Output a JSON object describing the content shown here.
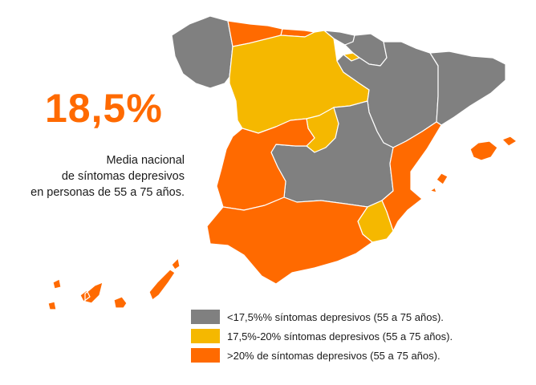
{
  "headline": {
    "value": "18,5%",
    "caption_lines": [
      "Media nacional",
      "de síntomas depresivos",
      "en personas de 55 a 75 años."
    ]
  },
  "colors": {
    "low": "#808080",
    "mid": "#f5b800",
    "high": "#ff6a00"
  },
  "legend": [
    {
      "level": "low",
      "label": "<17,5%% síntomas depresivos (55 a 75 años)."
    },
    {
      "level": "mid",
      "label": "17,5%-20% síntomas depresivos (55 a 75 años)."
    },
    {
      "level": "high",
      "label": ">20% de síntomas depresivos (55 a 75 años)."
    }
  ],
  "regions": [
    {
      "id": "galicia",
      "level": "low"
    },
    {
      "id": "asturias",
      "level": "high"
    },
    {
      "id": "cantabria",
      "level": "high"
    },
    {
      "id": "pais-vasco",
      "level": "low"
    },
    {
      "id": "navarra",
      "level": "low"
    },
    {
      "id": "la-rioja",
      "level": "mid"
    },
    {
      "id": "aragon",
      "level": "low"
    },
    {
      "id": "cataluna",
      "level": "low"
    },
    {
      "id": "castilla-y-leon",
      "level": "mid"
    },
    {
      "id": "madrid",
      "level": "mid"
    },
    {
      "id": "castilla-la-mancha",
      "level": "low"
    },
    {
      "id": "extremadura",
      "level": "high"
    },
    {
      "id": "comunidad-valenciana",
      "level": "high"
    },
    {
      "id": "murcia",
      "level": "mid"
    },
    {
      "id": "andalucia",
      "level": "high"
    },
    {
      "id": "baleares",
      "level": "high"
    },
    {
      "id": "canarias",
      "level": "high"
    }
  ]
}
